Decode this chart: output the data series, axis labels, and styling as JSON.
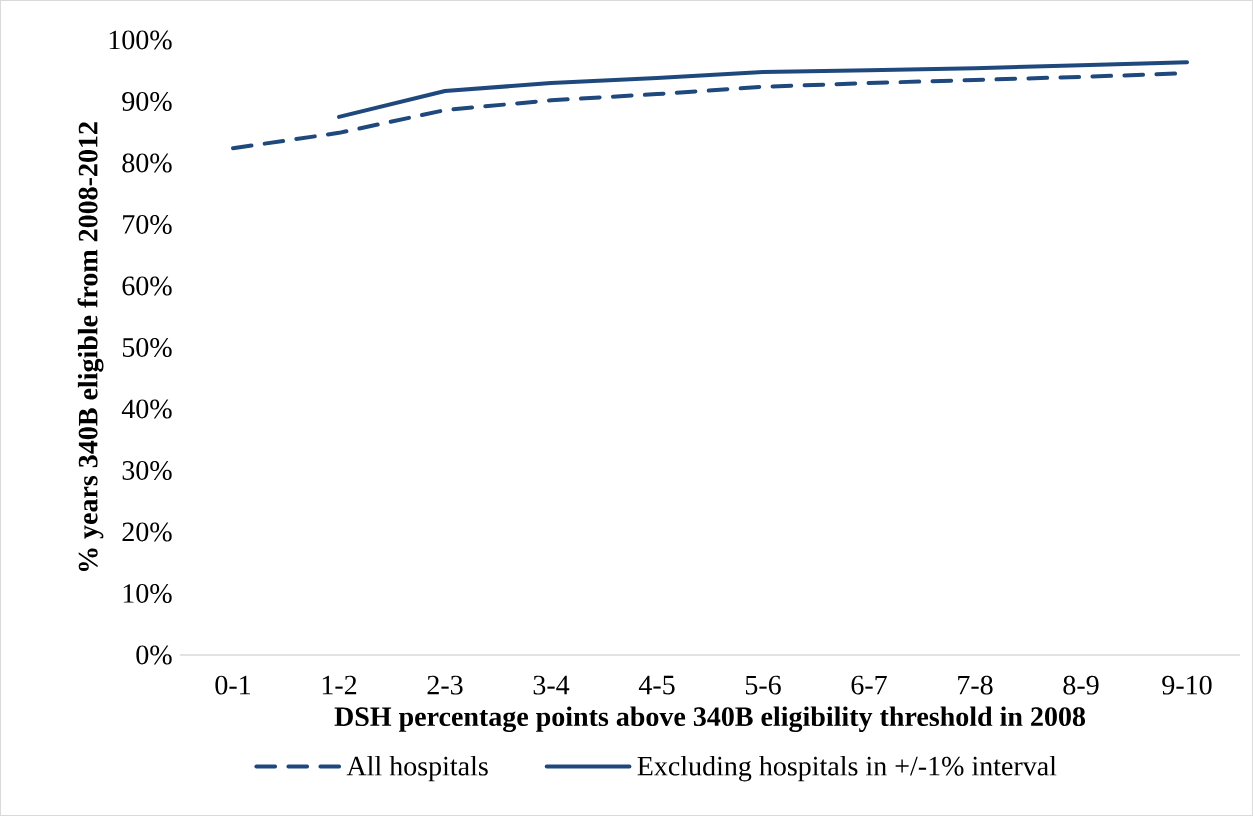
{
  "chart_data": {
    "type": "line",
    "xlabel": "DSH percentage points above 340B eligibility threshold in 2008",
    "ylabel": "% years 340B eligible from 2008-2012",
    "categories": [
      "0-1",
      "1-2",
      "2-3",
      "3-4",
      "4-5",
      "5-6",
      "6-7",
      "7-8",
      "8-9",
      "9-10"
    ],
    "series": [
      {
        "name": "All hospitals",
        "color": "#1f497d",
        "line_style": "dashed",
        "values": [
          82.4,
          84.9,
          88.6,
          90.2,
          91.2,
          92.4,
          93.0,
          93.5,
          94.0,
          94.6
        ]
      },
      {
        "name": "Excluding hospitals in +/-1% interval",
        "color": "#1f497d",
        "line_style": "solid",
        "values": [
          null,
          87.5,
          91.7,
          93.0,
          93.8,
          94.8,
          95.1,
          95.4,
          95.9,
          96.4
        ]
      }
    ],
    "ylim": [
      0,
      100
    ],
    "yticks": [
      {
        "value": 0,
        "label": "0%"
      },
      {
        "value": 10,
        "label": "10%"
      },
      {
        "value": 20,
        "label": "20%"
      },
      {
        "value": 30,
        "label": "30%"
      },
      {
        "value": 40,
        "label": "40%"
      },
      {
        "value": 50,
        "label": "50%"
      },
      {
        "value": 60,
        "label": "60%"
      },
      {
        "value": 70,
        "label": "70%"
      },
      {
        "value": 80,
        "label": "80%"
      },
      {
        "value": 90,
        "label": "90%"
      },
      {
        "value": 100,
        "label": "100%"
      }
    ],
    "grid": false,
    "marker": "none",
    "legend": "bottom"
  }
}
